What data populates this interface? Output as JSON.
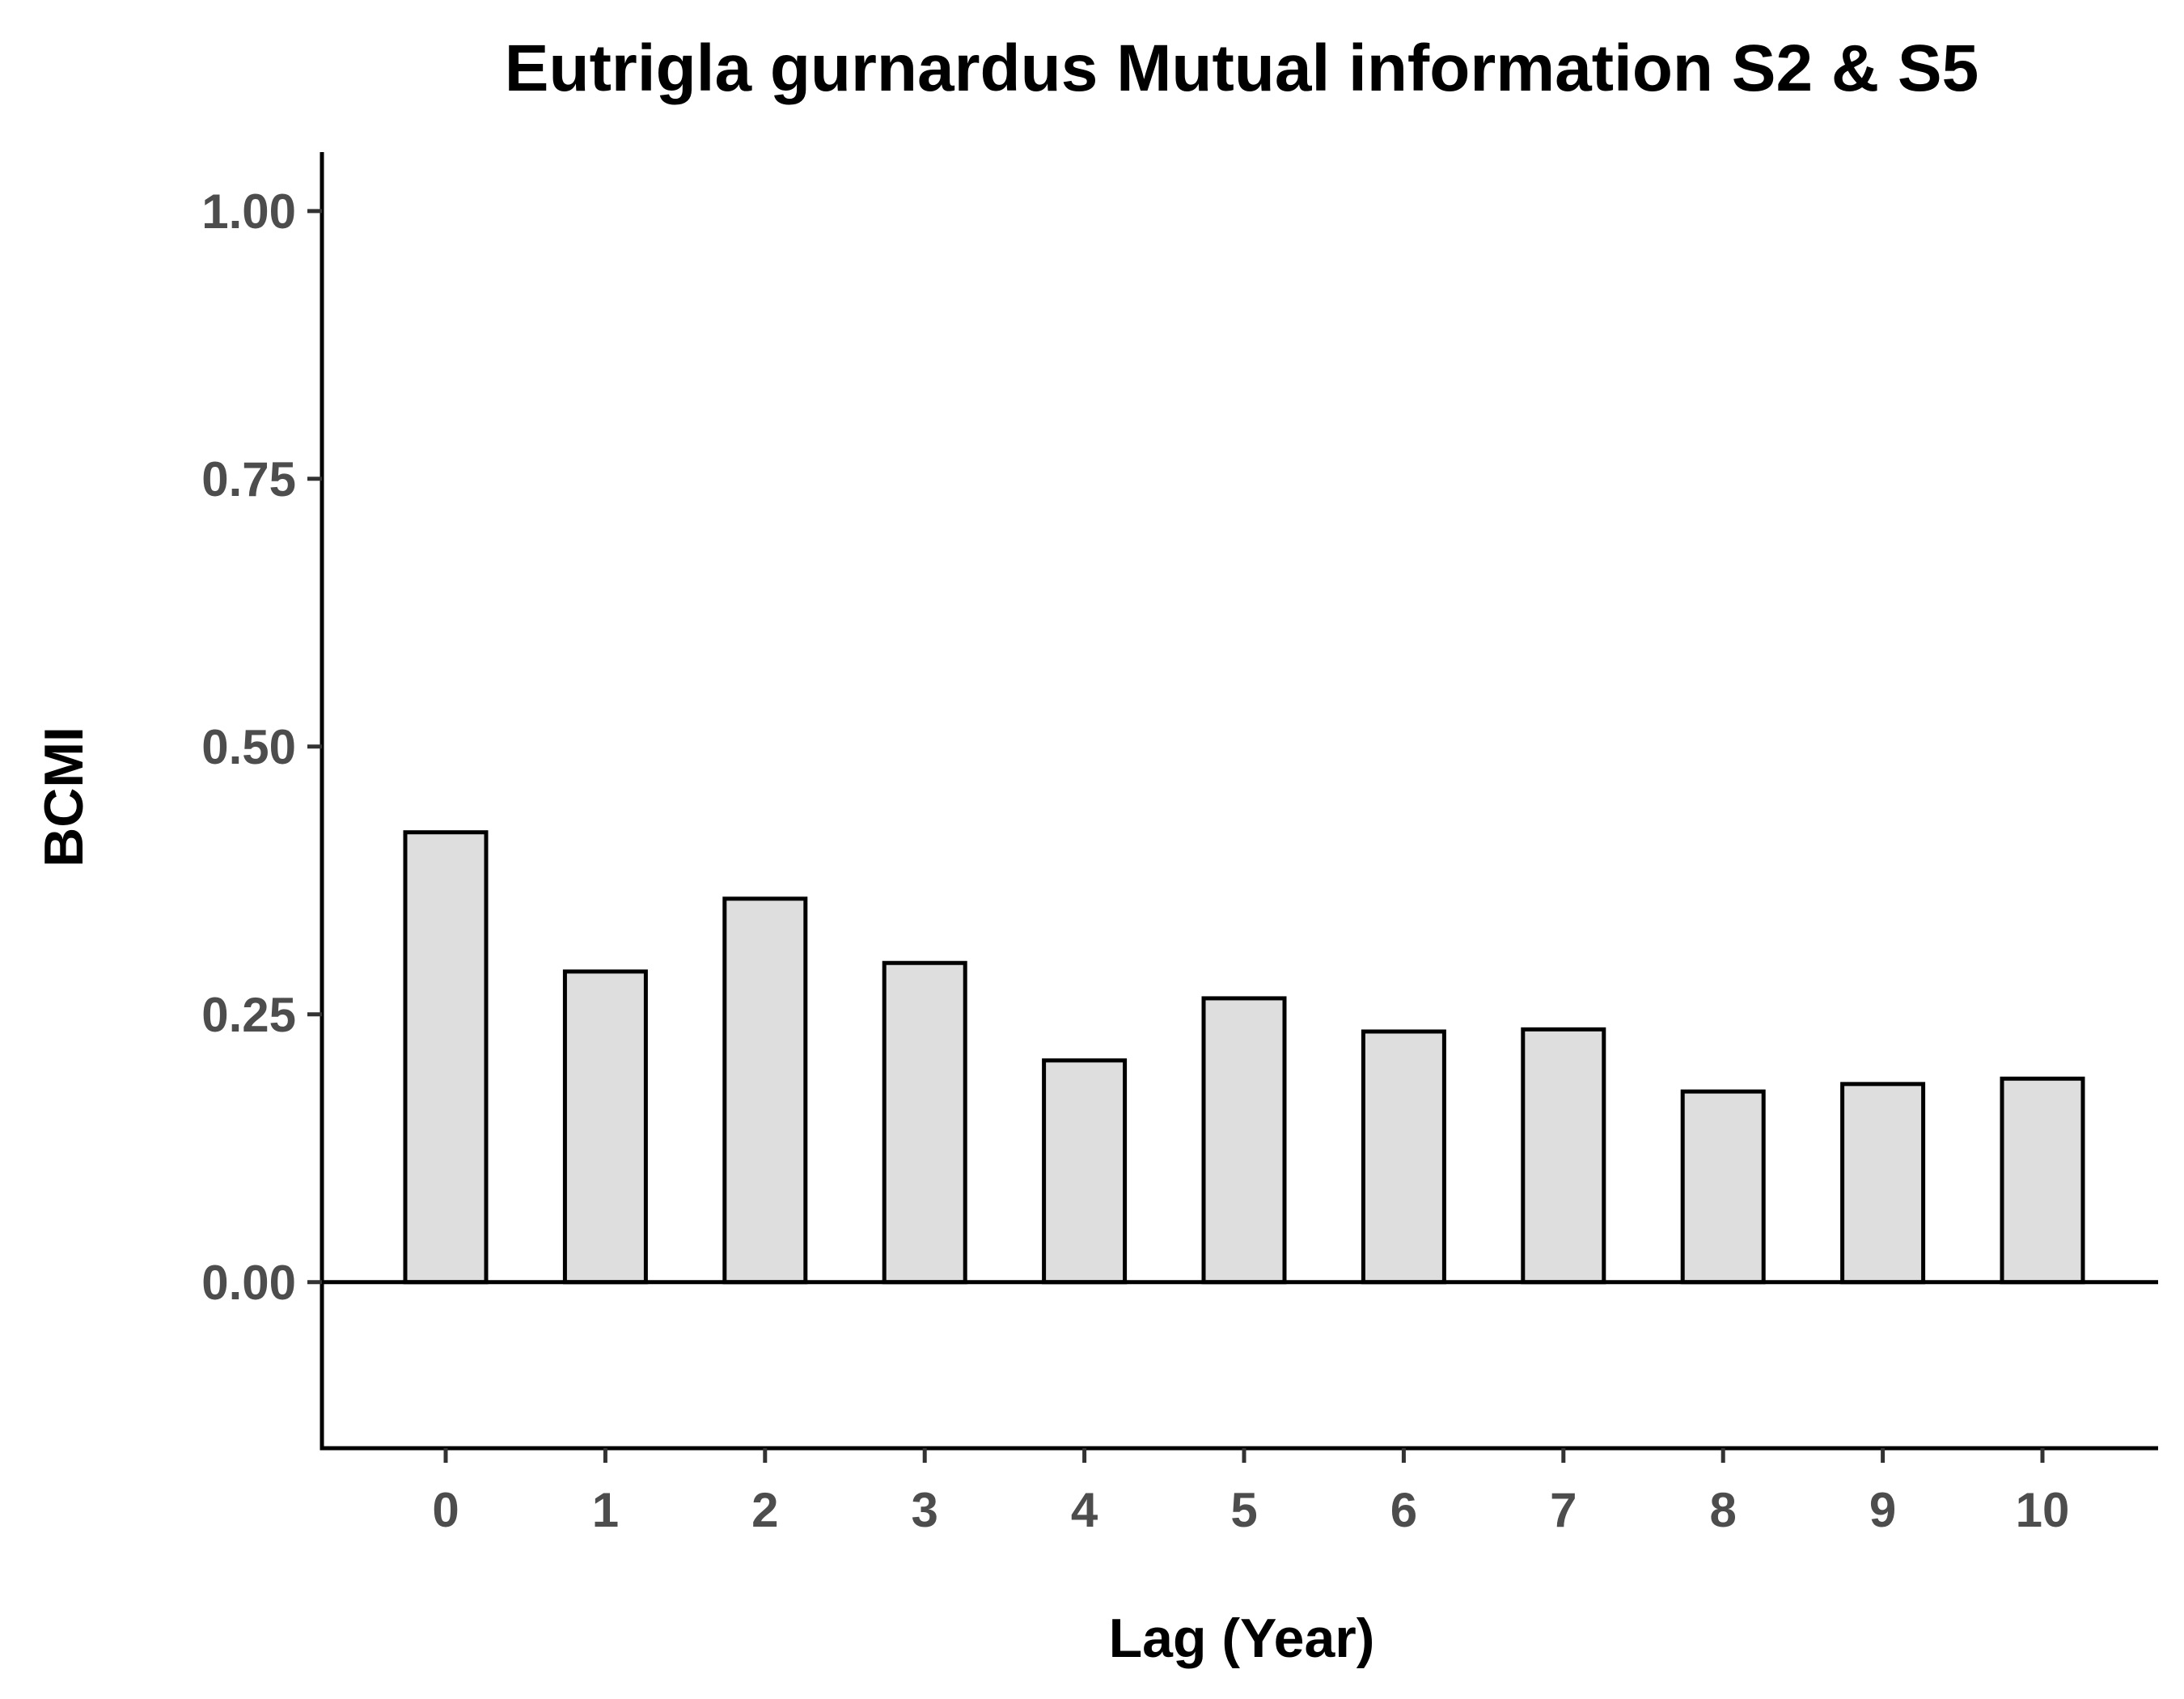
{
  "chart_data": {
    "type": "bar",
    "title": "Eutrigla gurnardus Mutual information S2 & S5",
    "xlabel": "Lag (Year)",
    "ylabel": "BCMI",
    "categories": [
      "0",
      "1",
      "2",
      "3",
      "4",
      "5",
      "6",
      "7",
      "8",
      "9",
      "10"
    ],
    "values": [
      0.42,
      0.29,
      0.358,
      0.298,
      0.207,
      0.265,
      0.234,
      0.236,
      0.178,
      0.185,
      0.19
    ],
    "ylim": [
      -0.155,
      1.055
    ],
    "yticks": [
      0,
      0.25,
      0.5,
      0.75,
      1.0
    ],
    "ytick_labels": [
      "0.00",
      "0.25",
      "0.50",
      "0.75",
      "1.00"
    ],
    "zero_line": true,
    "grid": false,
    "legend": "none",
    "colors": {
      "bar_fill": "#dedede",
      "bar_outline": "#000000"
    }
  }
}
